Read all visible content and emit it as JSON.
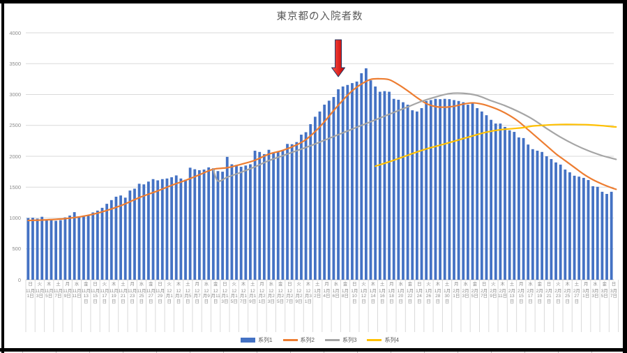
{
  "title": "東京都の入院者数",
  "legend": [
    {
      "label": "系列1",
      "color": "#4472C4",
      "marker": "bar"
    },
    {
      "label": "系列2",
      "color": "#ED7D31",
      "marker": "line"
    },
    {
      "label": "系列3",
      "color": "#A5A5A5",
      "marker": "line"
    },
    {
      "label": "系列4",
      "color": "#FFC000",
      "marker": "line"
    }
  ],
  "chart_data": {
    "type": "combo",
    "title": "東京都の入院者数",
    "ylim": [
      0,
      4000
    ],
    "y_ticks": [
      0,
      500,
      1000,
      1500,
      2000,
      2500,
      3000,
      3500,
      4000
    ],
    "grid": true,
    "legend_position": "bottom",
    "x_labels": [
      {
        "w": "日",
        "d": "11月1日"
      },
      {
        "w": "火",
        "d": "11月3日"
      },
      {
        "w": "木",
        "d": "11月5日"
      },
      {
        "w": "土",
        "d": "11月7日"
      },
      {
        "w": "月",
        "d": "11月9日"
      },
      {
        "w": "水",
        "d": "11月11日"
      },
      {
        "w": "金",
        "d": "11月13日"
      },
      {
        "w": "日",
        "d": "11月15日"
      },
      {
        "w": "火",
        "d": "11月17日"
      },
      {
        "w": "木",
        "d": "11月19日"
      },
      {
        "w": "土",
        "d": "11月21日"
      },
      {
        "w": "月",
        "d": "11月23日"
      },
      {
        "w": "水",
        "d": "11月25日"
      },
      {
        "w": "金",
        "d": "11月27日"
      },
      {
        "w": "日",
        "d": "11月29日"
      },
      {
        "w": "火",
        "d": "12月1日"
      },
      {
        "w": "木",
        "d": "12月3日"
      },
      {
        "w": "土",
        "d": "12月5日"
      },
      {
        "w": "月",
        "d": "12月7日"
      },
      {
        "w": "水",
        "d": "12月9日"
      },
      {
        "w": "金",
        "d": "12月11日"
      },
      {
        "w": "日",
        "d": "12月13日"
      },
      {
        "w": "火",
        "d": "12月15日"
      },
      {
        "w": "木",
        "d": "12月17日"
      },
      {
        "w": "土",
        "d": "12月19日"
      },
      {
        "w": "月",
        "d": "12月21日"
      },
      {
        "w": "水",
        "d": "12月23日"
      },
      {
        "w": "金",
        "d": "12月25日"
      },
      {
        "w": "日",
        "d": "12月27日"
      },
      {
        "w": "火",
        "d": "12月29日"
      },
      {
        "w": "木",
        "d": "12月31日"
      },
      {
        "w": "土",
        "d": "1月2日"
      },
      {
        "w": "月",
        "d": "1月4日"
      },
      {
        "w": "水",
        "d": "1月6日"
      },
      {
        "w": "金",
        "d": "1月8日"
      },
      {
        "w": "日",
        "d": "1月10日"
      },
      {
        "w": "火",
        "d": "1月12日"
      },
      {
        "w": "木",
        "d": "1月14日"
      },
      {
        "w": "土",
        "d": "1月16日"
      },
      {
        "w": "月",
        "d": "1月18日"
      },
      {
        "w": "水",
        "d": "1月20日"
      },
      {
        "w": "金",
        "d": "1月22日"
      },
      {
        "w": "日",
        "d": "1月24日"
      },
      {
        "w": "火",
        "d": "1月26日"
      },
      {
        "w": "木",
        "d": "1月28日"
      },
      {
        "w": "土",
        "d": "1月30日"
      },
      {
        "w": "月",
        "d": "2月1日"
      },
      {
        "w": "水",
        "d": "2月3日"
      },
      {
        "w": "金",
        "d": "2月5日"
      },
      {
        "w": "日",
        "d": "2月7日"
      },
      {
        "w": "火",
        "d": "2月9日"
      },
      {
        "w": "木",
        "d": "2月11日"
      },
      {
        "w": "土",
        "d": "2月13日"
      },
      {
        "w": "月",
        "d": "2月15日"
      },
      {
        "w": "水",
        "d": "2月17日"
      },
      {
        "w": "金",
        "d": "2月19日"
      },
      {
        "w": "日",
        "d": "2月21日"
      },
      {
        "w": "火",
        "d": "2月23日"
      },
      {
        "w": "木",
        "d": "2月25日"
      },
      {
        "w": "土",
        "d": "2月27日"
      },
      {
        "w": "月",
        "d": "3月1日"
      },
      {
        "w": "水",
        "d": "3月3日"
      },
      {
        "w": "金",
        "d": "3月5日"
      },
      {
        "w": "日",
        "d": "3月7日"
      }
    ],
    "bar_series": {
      "name": "系列1",
      "color": "#4472C4",
      "values": [
        1000,
        1005,
        990,
        1020,
        975,
        980,
        955,
        965,
        1010,
        1040,
        1095,
        1010,
        1040,
        1045,
        1090,
        1120,
        1165,
        1230,
        1290,
        1345,
        1365,
        1330,
        1445,
        1475,
        1555,
        1545,
        1590,
        1630,
        1610,
        1630,
        1640,
        1660,
        1690,
        1640,
        1620,
        1815,
        1790,
        1775,
        1785,
        1820,
        1805,
        1760,
        1750,
        1990,
        1870,
        1860,
        1830,
        1850,
        1870,
        2090,
        2070,
        2035,
        2105,
        2055,
        2075,
        2095,
        2200,
        2195,
        2230,
        2350,
        2390,
        2520,
        2640,
        2725,
        2836,
        2900,
        2960,
        3085,
        3130,
        3155,
        3185,
        3210,
        3345,
        3425,
        3230,
        3130,
        3045,
        3055,
        3045,
        2930,
        2915,
        2875,
        2835,
        2745,
        2725,
        2780,
        2895,
        2910,
        2930,
        2925,
        2930,
        2925,
        2910,
        2895,
        2875,
        2835,
        2855,
        2780,
        2725,
        2665,
        2590,
        2530,
        2530,
        2475,
        2420,
        2395,
        2305,
        2295,
        2190,
        2115,
        2090,
        2070,
        2000,
        1955,
        1900,
        1865,
        1785,
        1740,
        1685,
        1670,
        1650,
        1615,
        1515,
        1505,
        1425,
        1390,
        1425
      ]
    },
    "line_series": [
      {
        "name": "系列2",
        "color": "#ED7D31",
        "points": [
          [
            0,
            960
          ],
          [
            4,
            970
          ],
          [
            8,
            990
          ],
          [
            12,
            1030
          ],
          [
            16,
            1100
          ],
          [
            20,
            1200
          ],
          [
            24,
            1330
          ],
          [
            28,
            1440
          ],
          [
            31,
            1530
          ],
          [
            34,
            1610
          ],
          [
            37,
            1700
          ],
          [
            40,
            1790
          ],
          [
            43,
            1815
          ],
          [
            46,
            1870
          ],
          [
            49,
            1935
          ],
          [
            52,
            2035
          ],
          [
            55,
            2095
          ],
          [
            58,
            2185
          ],
          [
            60,
            2270
          ],
          [
            62,
            2400
          ],
          [
            64,
            2560
          ],
          [
            66,
            2740
          ],
          [
            68,
            2910
          ],
          [
            70,
            3060
          ],
          [
            72,
            3170
          ],
          [
            74,
            3245
          ],
          [
            76,
            3255
          ],
          [
            78,
            3240
          ],
          [
            80,
            3160
          ],
          [
            82,
            3060
          ],
          [
            84,
            2950
          ],
          [
            86,
            2855
          ],
          [
            88,
            2805
          ],
          [
            90,
            2795
          ],
          [
            92,
            2810
          ],
          [
            94,
            2845
          ],
          [
            96,
            2865
          ],
          [
            98,
            2845
          ],
          [
            100,
            2800
          ],
          [
            102,
            2740
          ],
          [
            104,
            2660
          ],
          [
            106,
            2560
          ],
          [
            108,
            2430
          ],
          [
            110,
            2300
          ],
          [
            112,
            2170
          ],
          [
            114,
            2040
          ],
          [
            116,
            1930
          ],
          [
            118,
            1820
          ],
          [
            120,
            1710
          ],
          [
            122,
            1620
          ],
          [
            124,
            1550
          ],
          [
            126,
            1490
          ],
          [
            127,
            1465
          ]
        ]
      },
      {
        "name": "系列3",
        "color": "#A5A5A5",
        "points": [
          [
            40,
            1780
          ],
          [
            41,
            1600
          ],
          [
            43,
            1660
          ],
          [
            46,
            1740
          ],
          [
            49,
            1830
          ],
          [
            52,
            1930
          ],
          [
            55,
            2010
          ],
          [
            58,
            2090
          ],
          [
            61,
            2170
          ],
          [
            64,
            2260
          ],
          [
            67,
            2350
          ],
          [
            70,
            2440
          ],
          [
            73,
            2530
          ],
          [
            76,
            2620
          ],
          [
            79,
            2710
          ],
          [
            82,
            2800
          ],
          [
            85,
            2890
          ],
          [
            88,
            2960
          ],
          [
            91,
            3015
          ],
          [
            94,
            3020
          ],
          [
            97,
            2985
          ],
          [
            100,
            2900
          ],
          [
            103,
            2820
          ],
          [
            106,
            2720
          ],
          [
            109,
            2600
          ],
          [
            112,
            2450
          ],
          [
            115,
            2310
          ],
          [
            118,
            2190
          ],
          [
            121,
            2090
          ],
          [
            124,
            2010
          ],
          [
            126,
            1970
          ],
          [
            127,
            1950
          ]
        ]
      },
      {
        "name": "系列4",
        "color": "#FFC000",
        "points": [
          [
            75,
            1840
          ],
          [
            78,
            1910
          ],
          [
            81,
            1990
          ],
          [
            84,
            2070
          ],
          [
            87,
            2140
          ],
          [
            90,
            2200
          ],
          [
            93,
            2265
          ],
          [
            96,
            2330
          ],
          [
            99,
            2390
          ],
          [
            102,
            2430
          ],
          [
            105,
            2450
          ],
          [
            107,
            2465
          ],
          [
            109,
            2490
          ],
          [
            112,
            2505
          ],
          [
            115,
            2515
          ],
          [
            118,
            2515
          ],
          [
            121,
            2510
          ],
          [
            124,
            2495
          ],
          [
            126,
            2480
          ],
          [
            127,
            2475
          ]
        ]
      }
    ],
    "annotation": {
      "type": "down-arrow",
      "day_index": 67,
      "fill_from": "#FF5147",
      "fill_to": "#C00000",
      "outline": "#1F3864"
    }
  },
  "style_colors": {
    "gridline": "#D9D9D9",
    "axis_line": "#BFBFBF",
    "tick_label": "#8C8C8C",
    "title": "#595959"
  }
}
